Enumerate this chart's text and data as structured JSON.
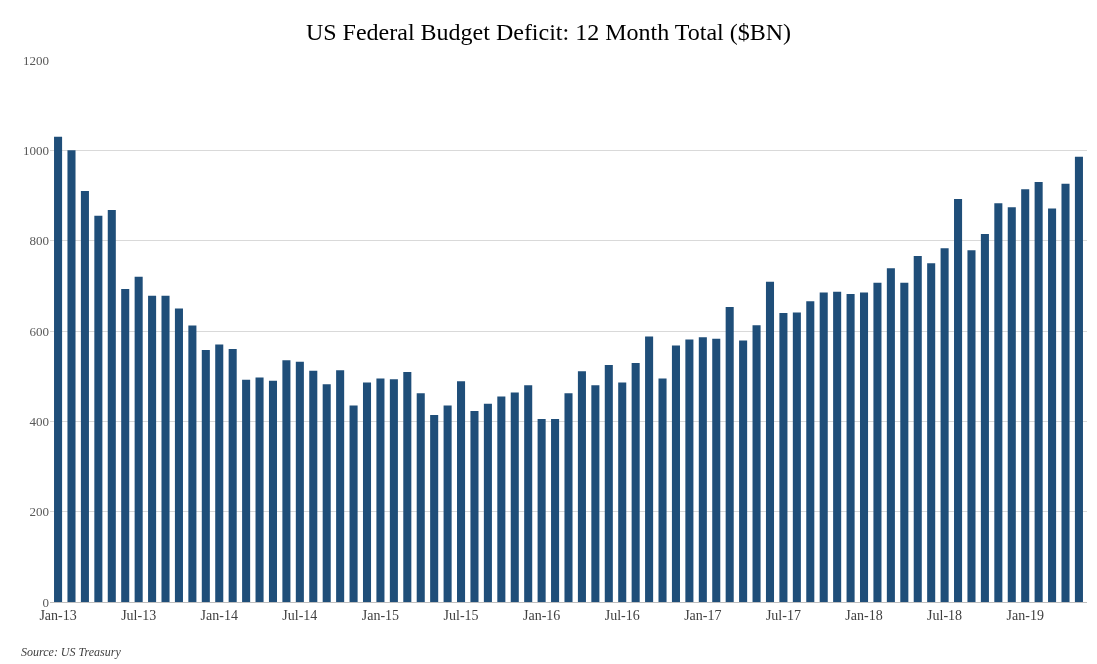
{
  "chart_data": {
    "type": "bar",
    "title": "US Federal Budget Deficit: 12 Month Total ($BN)",
    "categories": [
      "Jan-13",
      null,
      null,
      null,
      null,
      null,
      "Jul-13",
      null,
      null,
      null,
      null,
      null,
      "Jan-14",
      null,
      null,
      null,
      null,
      null,
      "Jul-14",
      null,
      null,
      null,
      null,
      null,
      "Jan-15",
      null,
      null,
      null,
      null,
      null,
      "Jul-15",
      null,
      null,
      null,
      null,
      null,
      "Jan-16",
      null,
      null,
      null,
      null,
      null,
      "Jul-16",
      null,
      null,
      null,
      null,
      null,
      "Jan-17",
      null,
      null,
      null,
      null,
      null,
      "Jul-17",
      null,
      null,
      null,
      null,
      null,
      "Jan-18",
      null,
      null,
      null,
      null,
      null,
      "Jul-18",
      null,
      null,
      null,
      null,
      null,
      "Jan-19",
      null,
      null,
      null,
      null
    ],
    "values": [
      1030,
      1000,
      910,
      855,
      868,
      693,
      720,
      678,
      678,
      650,
      612,
      558,
      570,
      560,
      492,
      497,
      490,
      535,
      532,
      512,
      482,
      513,
      435,
      486,
      495,
      493,
      509,
      462,
      414,
      435,
      489,
      423,
      439,
      455,
      464,
      480,
      405,
      405,
      462,
      511,
      480,
      525,
      486,
      529,
      588,
      495,
      568,
      581,
      586,
      583,
      653,
      579,
      613,
      709,
      640,
      641,
      666,
      685,
      687,
      682,
      685,
      707,
      739,
      707,
      766,
      750,
      783,
      892,
      779,
      815,
      883,
      874,
      914,
      930,
      871,
      926,
      986
    ],
    "color": "#1f4e79",
    "ylim": [
      0,
      1200
    ],
    "yticks": [
      0,
      200,
      400,
      600,
      800,
      1000,
      1200
    ],
    "grid": "y",
    "annotations": [
      "Source: US Treasury"
    ]
  }
}
